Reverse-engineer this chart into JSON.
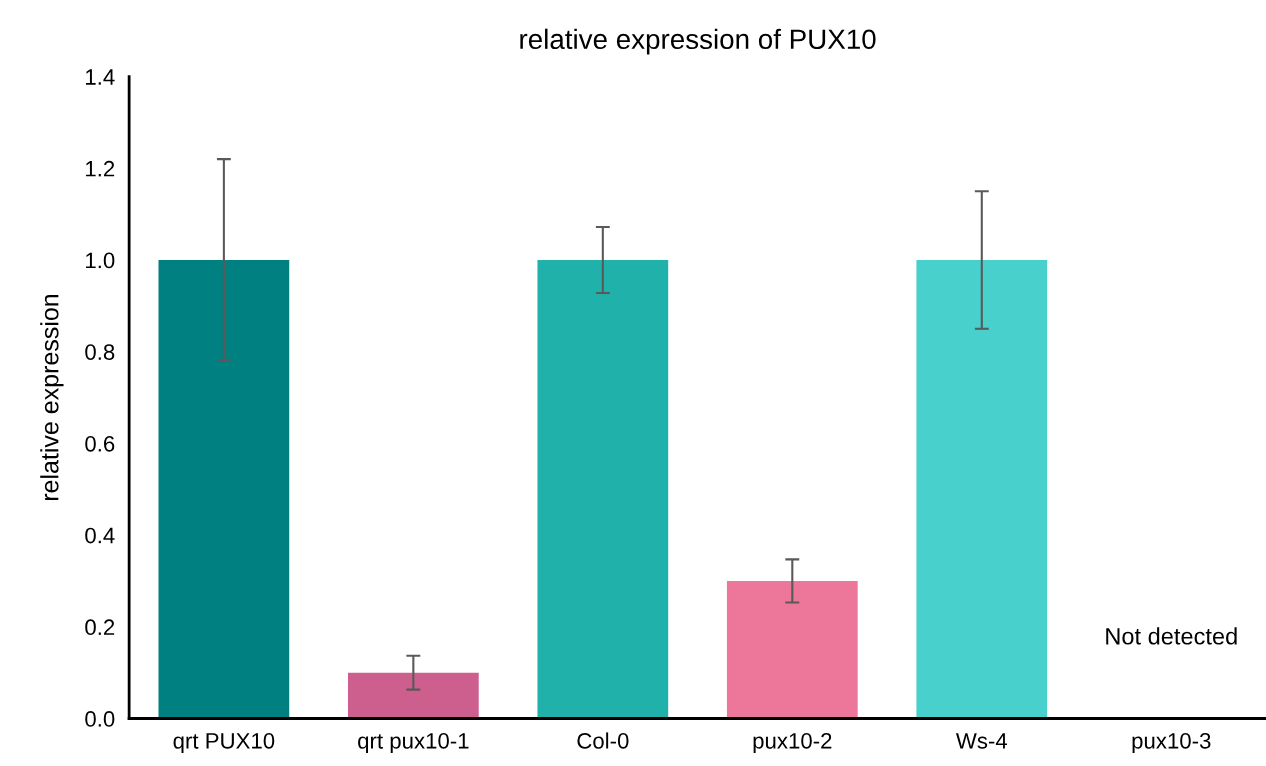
{
  "chart_data": {
    "type": "bar",
    "title": "relative expression of PUX10",
    "ylabel": "relative expression",
    "categories": [
      "qrt PUX10",
      "qrt pux10-1",
      "Col-0",
      "pux10-2",
      "Ws-4",
      "pux10-3"
    ],
    "values": [
      1.0,
      0.1,
      1.0,
      0.3,
      1.0,
      null
    ],
    "colors": [
      "#008080",
      "#cd5f8e",
      "#20b2aa",
      "#ec779b",
      "#48d1cc",
      "#48d1cc"
    ],
    "errors": [
      0.22,
      0.037,
      0.072,
      0.047,
      0.15,
      null
    ],
    "ylim": [
      0,
      1.4
    ],
    "yticks": [
      {
        "value": 0,
        "label": "0.0"
      },
      0.2,
      0.4,
      0.6,
      0.8,
      {
        "value": 1,
        "label": "1.0"
      },
      1.2,
      1.4
    ],
    "annotations": [
      "Not detected"
    ],
    "grid": false,
    "legend": false
  }
}
